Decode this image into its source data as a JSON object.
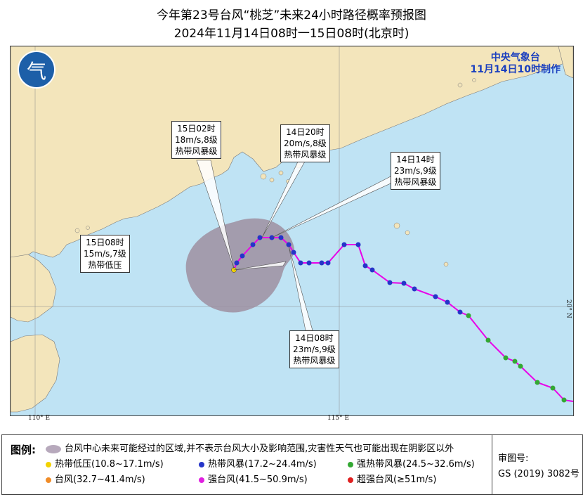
{
  "title": {
    "line1": "今年第23号台风“桃芝”未来24小时路径概率预报图",
    "line2": "2024年11月14日08时一15日08时(北京时)"
  },
  "agency": {
    "name": "中央气象台",
    "issued": "11月14日10时制作"
  },
  "map": {
    "logo_icon": "cma-logo-icon",
    "lon_labels": [
      "110° E",
      "115° E"
    ],
    "lat_labels": [
      "20° N"
    ],
    "colors": {
      "sea": "#bfe3f4",
      "land": "#f3e5bb",
      "track": "#e800e8",
      "uncertainty": "#9d8fa0",
      "tropical_depression": "#f2d200",
      "tropical_storm": "#2535c8",
      "severe_tropical_storm": "#33a833",
      "typhoon": "#f08c28",
      "severe_typhoon": "#e020e0",
      "super_typhoon": "#e02020"
    }
  },
  "callouts": [
    {
      "time": "15日02时",
      "wind": "18m/s,8级",
      "level": "热带风暴级"
    },
    {
      "time": "14日20时",
      "wind": "20m/s,8级",
      "level": "热带风暴级"
    },
    {
      "time": "14日14时",
      "wind": "23m/s,9级",
      "level": "热带风暴级"
    },
    {
      "time": "15日08时",
      "wind": "15m/s,7级",
      "level": "热带低压"
    },
    {
      "time": "14日08时",
      "wind": "23m/s,9级",
      "level": "热带风暴级"
    }
  ],
  "legend": {
    "title": "图例:",
    "area": "台风中心未来可能经过的区域,并不表示台风大小及影响范围,灾害性天气也可能出现在阴影区以外",
    "items": [
      {
        "label": "热带低压(10.8~17.1m/s)",
        "color": "#f2d200"
      },
      {
        "label": "热带风暴(17.2~24.4m/s)",
        "color": "#2535c8"
      },
      {
        "label": "强热带风暴(24.5~32.6m/s)",
        "color": "#33a833"
      },
      {
        "label": "台风(32.7~41.4m/s)",
        "color": "#f08c28"
      },
      {
        "label": "强台风(41.5~50.9m/s)",
        "color": "#e020e0"
      },
      {
        "label": "超强台风(≥51m/s)",
        "color": "#e02020"
      }
    ],
    "approval_label": "审图号:",
    "approval_no": "GS (2019) 3082号"
  }
}
